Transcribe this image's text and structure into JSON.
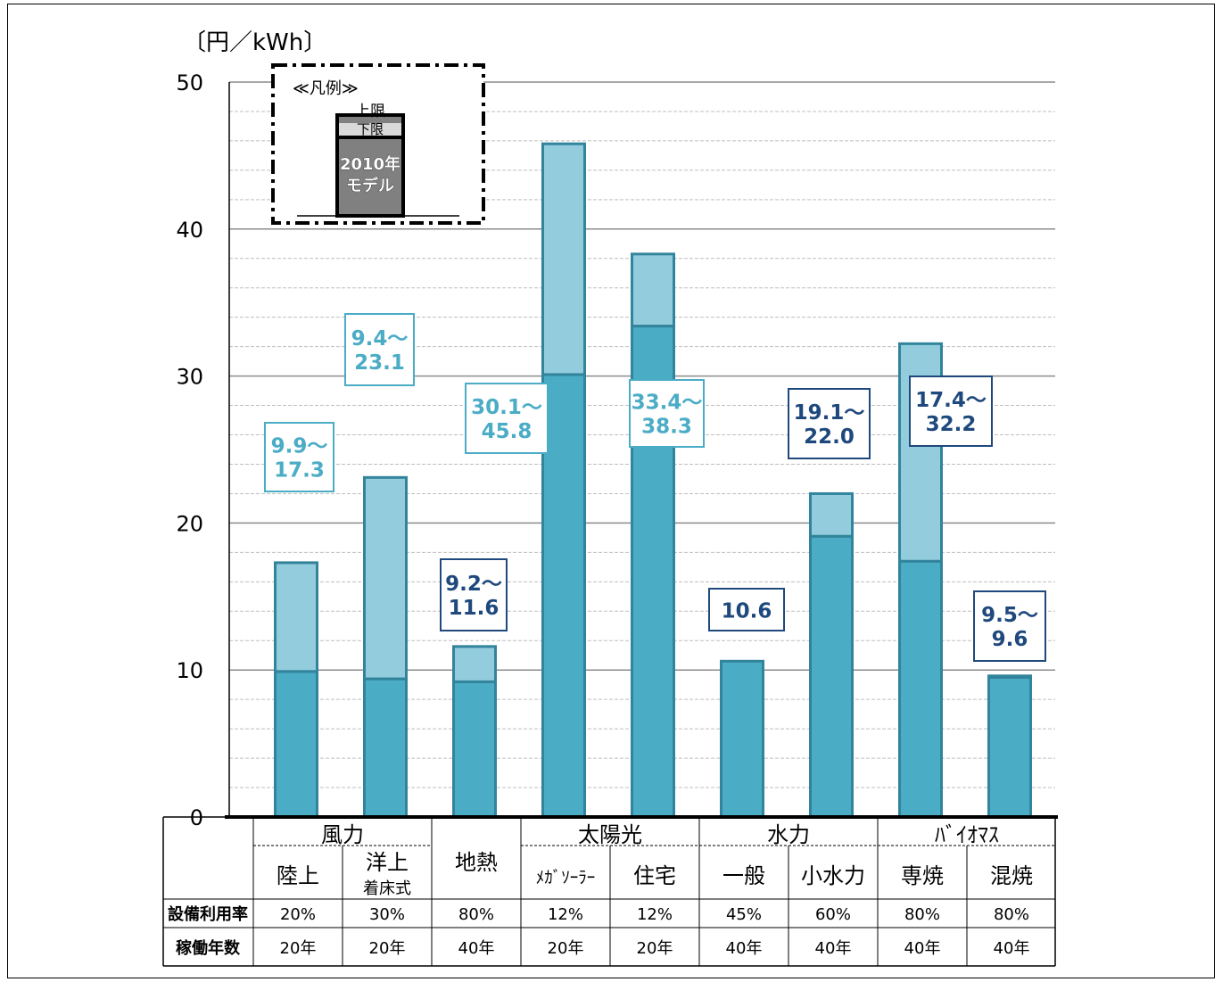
{
  "chart_data": {
    "type": "bar",
    "unit_label": "〔円／kWh〕",
    "ylim": [
      0,
      50
    ],
    "yticks": [
      0,
      10,
      20,
      30,
      40,
      50
    ],
    "grid": true,
    "colors": {
      "lower": "#4bacc6",
      "upper": "#93cddd",
      "stroke": "#31849b",
      "label_light": "#4bacc6",
      "label_dark": "#1f497d"
    },
    "bars": [
      {
        "group": "風力",
        "name": "陸上",
        "low": 9.9,
        "high": 17.3,
        "label": [
          "9.9～",
          "17.3"
        ],
        "label_color": "light"
      },
      {
        "group": "風力",
        "name": "洋上",
        "sub": "着床式",
        "low": 9.4,
        "high": 23.1,
        "label": [
          "9.4～",
          "23.1"
        ],
        "label_color": "light"
      },
      {
        "group": "",
        "name": "地熱",
        "low": 9.2,
        "high": 11.6,
        "label": [
          "9.2～",
          "11.6"
        ],
        "label_color": "dark"
      },
      {
        "group": "太陽光",
        "name": "ﾒｶﾞｿｰﾗｰ",
        "low": 30.1,
        "high": 45.8,
        "label": [
          "30.1～",
          "45.8"
        ],
        "label_color": "light"
      },
      {
        "group": "太陽光",
        "name": "住宅",
        "low": 33.4,
        "high": 38.3,
        "label": [
          "33.4～",
          "38.3"
        ],
        "label_color": "light"
      },
      {
        "group": "水力",
        "name": "一般",
        "low": 10.6,
        "high": 10.6,
        "label": [
          "10.6"
        ],
        "label_color": "dark"
      },
      {
        "group": "水力",
        "name": "小水力",
        "low": 19.1,
        "high": 22.0,
        "label": [
          "19.1～",
          "22.0"
        ],
        "label_color": "dark"
      },
      {
        "group": "ﾊﾞｲｵﾏｽ",
        "name": "専焼",
        "low": 17.4,
        "high": 32.2,
        "label": [
          "17.4～",
          "32.2"
        ],
        "label_color": "dark"
      },
      {
        "group": "ﾊﾞｲｵﾏｽ",
        "name": "混焼",
        "low": 9.5,
        "high": 9.6,
        "label": [
          "9.5～",
          "9.6"
        ],
        "label_color": "dark"
      }
    ],
    "legend": {
      "title": "≪凡例≫",
      "upper": "上限",
      "lower": "下限",
      "base": [
        "2010年",
        "モデル"
      ]
    },
    "table": {
      "row_labels": [
        "設備利用率",
        "稼働年数"
      ],
      "utilization": [
        "20%",
        "30%",
        "80%",
        "12%",
        "12%",
        "45%",
        "60%",
        "80%",
        "80%"
      ],
      "years": [
        "20年",
        "20年",
        "40年",
        "20年",
        "20年",
        "40年",
        "40年",
        "40年",
        "40年"
      ]
    }
  }
}
